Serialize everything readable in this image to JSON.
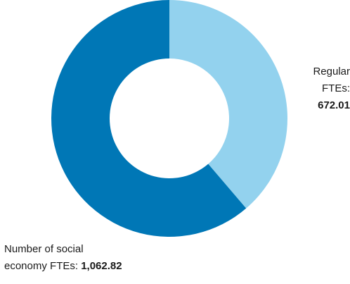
{
  "chart_data": {
    "type": "pie",
    "donut": true,
    "title": "",
    "slices": [
      {
        "label_line1": "Regular",
        "label_line2": "FTEs:",
        "value": 672.01,
        "value_text": "672.01",
        "color": "#93d2ee"
      },
      {
        "label_line1": "Number of social",
        "label_line2": "economy FTEs:",
        "value": 1062.82,
        "value_text": "1,062.82",
        "color": "#0077b6"
      }
    ],
    "legend": "none"
  }
}
